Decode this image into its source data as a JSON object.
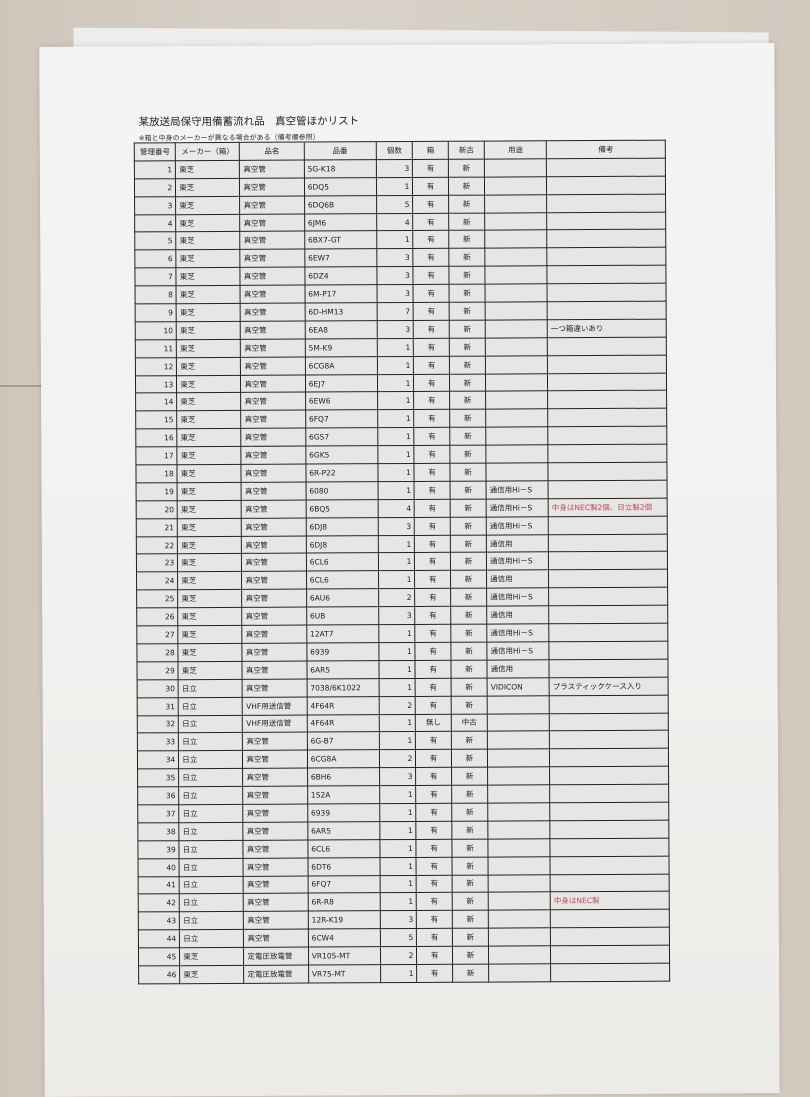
{
  "document": {
    "title": "某放送局保守用備蓄流れ品　真空管ほかリスト",
    "note": "※箱と中身のメーカーが異なる場合がある（備考欄参照）",
    "columns": [
      "管理番号",
      "メーカー（箱）",
      "品名",
      "品番",
      "個数",
      "箱",
      "新古",
      "用途",
      "備考"
    ],
    "rows": [
      [
        "1",
        "東芝",
        "真空管",
        "5G-K18",
        "3",
        "有",
        "新",
        "",
        ""
      ],
      [
        "2",
        "東芝",
        "真空管",
        "6DQ5",
        "1",
        "有",
        "新",
        "",
        ""
      ],
      [
        "3",
        "東芝",
        "真空管",
        "6DQ6B",
        "5",
        "有",
        "新",
        "",
        ""
      ],
      [
        "4",
        "東芝",
        "真空管",
        "6JM6",
        "4",
        "有",
        "新",
        "",
        ""
      ],
      [
        "5",
        "東芝",
        "真空管",
        "6BX7-GT",
        "1",
        "有",
        "新",
        "",
        ""
      ],
      [
        "6",
        "東芝",
        "真空管",
        "6EW7",
        "3",
        "有",
        "新",
        "",
        ""
      ],
      [
        "7",
        "東芝",
        "真空管",
        "6DZ4",
        "3",
        "有",
        "新",
        "",
        ""
      ],
      [
        "8",
        "東芝",
        "真空管",
        "6M-P17",
        "3",
        "有",
        "新",
        "",
        ""
      ],
      [
        "9",
        "東芝",
        "真空管",
        "6D-HM13",
        "7",
        "有",
        "新",
        "",
        ""
      ],
      [
        "10",
        "東芝",
        "真空管",
        "6EA8",
        "3",
        "有",
        "新",
        "",
        "一つ箱違いあり"
      ],
      [
        "11",
        "東芝",
        "真空管",
        "5M-K9",
        "1",
        "有",
        "新",
        "",
        ""
      ],
      [
        "12",
        "東芝",
        "真空管",
        "6CG8A",
        "1",
        "有",
        "新",
        "",
        ""
      ],
      [
        "13",
        "東芝",
        "真空管",
        "6EJ7",
        "1",
        "有",
        "新",
        "",
        ""
      ],
      [
        "14",
        "東芝",
        "真空管",
        "6EW6",
        "1",
        "有",
        "新",
        "",
        ""
      ],
      [
        "15",
        "東芝",
        "真空管",
        "6FQ7",
        "1",
        "有",
        "新",
        "",
        ""
      ],
      [
        "16",
        "東芝",
        "真空管",
        "6GS7",
        "1",
        "有",
        "新",
        "",
        ""
      ],
      [
        "17",
        "東芝",
        "真空管",
        "6GK5",
        "1",
        "有",
        "新",
        "",
        ""
      ],
      [
        "18",
        "東芝",
        "真空管",
        "6R-P22",
        "1",
        "有",
        "新",
        "",
        ""
      ],
      [
        "19",
        "東芝",
        "真空管",
        "6080",
        "1",
        "有",
        "新",
        "通信用Hi－S",
        ""
      ],
      [
        "20",
        "東芝",
        "真空管",
        "6BQ5",
        "4",
        "有",
        "新",
        "通信用Hi－S",
        "中身はNEC製2個、日立製2個"
      ],
      [
        "21",
        "東芝",
        "真空管",
        "6DJ8",
        "3",
        "有",
        "新",
        "通信用Hi－S",
        ""
      ],
      [
        "22",
        "東芝",
        "真空管",
        "6DJ8",
        "1",
        "有",
        "新",
        "通信用",
        ""
      ],
      [
        "23",
        "東芝",
        "真空管",
        "6CL6",
        "1",
        "有",
        "新",
        "通信用Hi－S",
        ""
      ],
      [
        "24",
        "東芝",
        "真空管",
        "6CL6",
        "1",
        "有",
        "新",
        "通信用",
        ""
      ],
      [
        "25",
        "東芝",
        "真空管",
        "6AU6",
        "2",
        "有",
        "新",
        "通信用Hi－S",
        ""
      ],
      [
        "26",
        "東芝",
        "真空管",
        "6UB",
        "3",
        "有",
        "新",
        "通信用",
        ""
      ],
      [
        "27",
        "東芝",
        "真空管",
        "12AT7",
        "1",
        "有",
        "新",
        "通信用Hi－S",
        ""
      ],
      [
        "28",
        "東芝",
        "真空管",
        "6939",
        "1",
        "有",
        "新",
        "通信用Hi－S",
        ""
      ],
      [
        "29",
        "東芝",
        "真空管",
        "6AR5",
        "1",
        "有",
        "新",
        "通信用",
        ""
      ],
      [
        "30",
        "日立",
        "真空管",
        "7038/6K1022",
        "1",
        "有",
        "新",
        "VIDICON",
        "プラスティックケース入り"
      ],
      [
        "31",
        "日立",
        "VHF用送信管",
        "4F64R",
        "2",
        "有",
        "新",
        "",
        ""
      ],
      [
        "32",
        "日立",
        "VHF用送信管",
        "4F64R",
        "1",
        "無し",
        "中古",
        "",
        ""
      ],
      [
        "33",
        "日立",
        "真空管",
        "6G-B7",
        "1",
        "有",
        "新",
        "",
        ""
      ],
      [
        "34",
        "日立",
        "真空管",
        "6CG8A",
        "2",
        "有",
        "新",
        "",
        ""
      ],
      [
        "35",
        "日立",
        "真空管",
        "6BH6",
        "3",
        "有",
        "新",
        "",
        ""
      ],
      [
        "36",
        "日立",
        "真空管",
        "1S2A",
        "1",
        "有",
        "新",
        "",
        ""
      ],
      [
        "37",
        "日立",
        "真空管",
        "6939",
        "1",
        "有",
        "新",
        "",
        ""
      ],
      [
        "38",
        "日立",
        "真空管",
        "6AR5",
        "1",
        "有",
        "新",
        "",
        ""
      ],
      [
        "39",
        "日立",
        "真空管",
        "6CL6",
        "1",
        "有",
        "新",
        "",
        ""
      ],
      [
        "40",
        "日立",
        "真空管",
        "6DT6",
        "1",
        "有",
        "新",
        "",
        ""
      ],
      [
        "41",
        "日立",
        "真空管",
        "6FQ7",
        "1",
        "有",
        "新",
        "",
        ""
      ],
      [
        "42",
        "日立",
        "真空管",
        "6R-R8",
        "1",
        "有",
        "新",
        "",
        "中身はNEC製"
      ],
      [
        "43",
        "日立",
        "真空管",
        "12R-K19",
        "3",
        "有",
        "新",
        "",
        ""
      ],
      [
        "44",
        "日立",
        "真空管",
        "6CW4",
        "5",
        "有",
        "新",
        "",
        ""
      ],
      [
        "45",
        "東芝",
        "定電圧放電管",
        "VR105-MT",
        "2",
        "有",
        "新",
        "",
        ""
      ],
      [
        "46",
        "東芝",
        "定電圧放電管",
        "VR75-MT",
        "1",
        "有",
        "新",
        "",
        ""
      ]
    ],
    "remark_color": "#c0485a"
  }
}
